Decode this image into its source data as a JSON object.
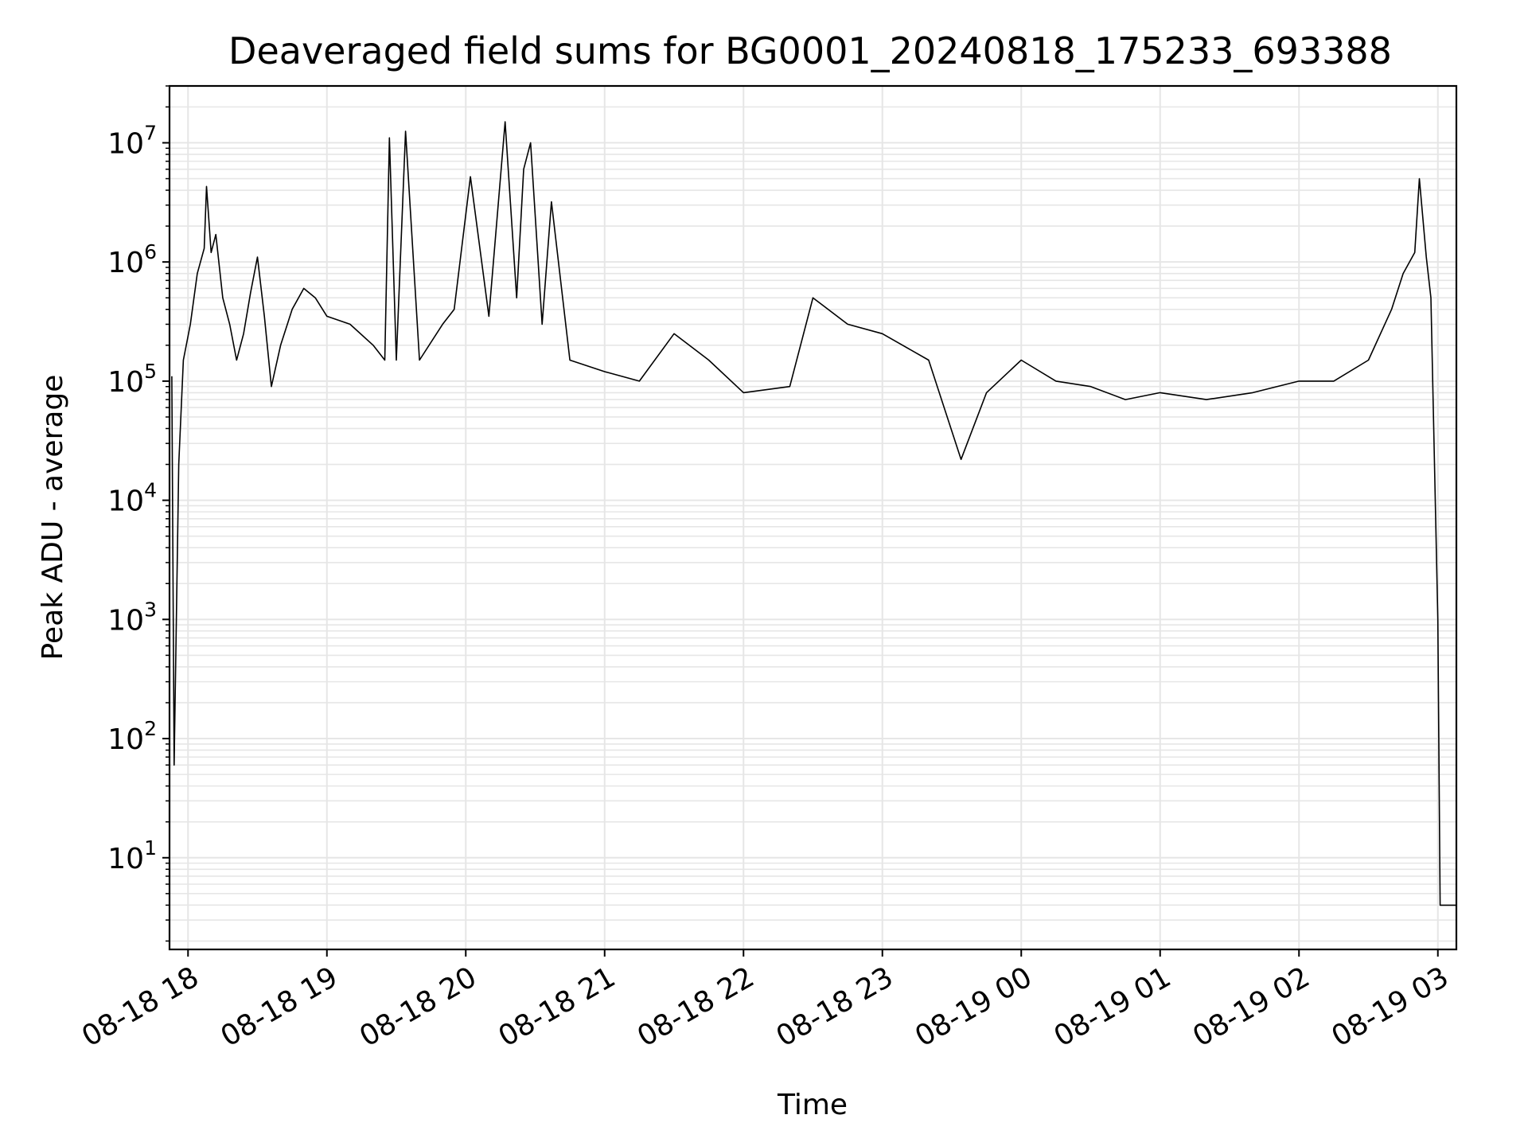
{
  "chart_data": {
    "type": "line",
    "title": "Deaveraged field sums for BG0001_20240818_175233_693388",
    "xlabel": "Time",
    "ylabel": "Peak ADU - average",
    "yscale": "log",
    "ylim": [
      1.7,
      30000000
    ],
    "xlim": [
      "08-18 17:52",
      "08-19 03:08"
    ],
    "grid": true,
    "line_color": "#000000",
    "grid_color": "#e6e6e6",
    "x_ticks": [
      "08-18 18",
      "08-18 19",
      "08-18 20",
      "08-18 21",
      "08-18 22",
      "08-18 23",
      "08-19 00",
      "08-19 01",
      "08-19 02",
      "08-19 03"
    ],
    "y_ticks": [
      {
        "base": "10",
        "exp": "1"
      },
      {
        "base": "10",
        "exp": "2"
      },
      {
        "base": "10",
        "exp": "3"
      },
      {
        "base": "10",
        "exp": "4"
      },
      {
        "base": "10",
        "exp": "5"
      },
      {
        "base": "10",
        "exp": "6"
      },
      {
        "base": "10",
        "exp": "7"
      }
    ],
    "series": [
      {
        "points": [
          [
            "08-18 17:53",
            110000
          ],
          [
            "08-18 17:54",
            60
          ],
          [
            "08-18 17:56",
            20000
          ],
          [
            "08-18 17:58",
            150000
          ],
          [
            "08-18 18:01",
            300000
          ],
          [
            "08-18 18:04",
            800000
          ],
          [
            "08-18 18:07",
            1300000
          ],
          [
            "08-18 18:08",
            4300000
          ],
          [
            "08-18 18:10",
            1200000
          ],
          [
            "08-18 18:12",
            1700000
          ],
          [
            "08-18 18:15",
            500000
          ],
          [
            "08-18 18:18",
            300000
          ],
          [
            "08-18 18:21",
            150000
          ],
          [
            "08-18 18:24",
            250000
          ],
          [
            "08-18 18:27",
            550000
          ],
          [
            "08-18 18:30",
            1100000
          ],
          [
            "08-18 18:33",
            350000
          ],
          [
            "08-18 18:36",
            90000
          ],
          [
            "08-18 18:40",
            200000
          ],
          [
            "08-18 18:45",
            400000
          ],
          [
            "08-18 18:50",
            600000
          ],
          [
            "08-18 18:55",
            500000
          ],
          [
            "08-18 19:00",
            350000
          ],
          [
            "08-18 19:10",
            300000
          ],
          [
            "08-18 19:20",
            200000
          ],
          [
            "08-18 19:25",
            150000
          ],
          [
            "08-18 19:27",
            11000000
          ],
          [
            "08-18 19:30",
            150000
          ],
          [
            "08-18 19:34",
            12500000
          ],
          [
            "08-18 19:40",
            150000
          ],
          [
            "08-18 19:50",
            300000
          ],
          [
            "08-18 19:55",
            400000
          ],
          [
            "08-18 20:02",
            5200000
          ],
          [
            "08-18 20:10",
            350000
          ],
          [
            "08-18 20:17",
            15000000
          ],
          [
            "08-18 20:22",
            500000
          ],
          [
            "08-18 20:25",
            6000000
          ],
          [
            "08-18 20:28",
            10000000
          ],
          [
            "08-18 20:33",
            300000
          ],
          [
            "08-18 20:37",
            3200000
          ],
          [
            "08-18 20:45",
            150000
          ],
          [
            "08-18 21:00",
            120000
          ],
          [
            "08-18 21:15",
            100000
          ],
          [
            "08-18 21:30",
            250000
          ],
          [
            "08-18 21:45",
            150000
          ],
          [
            "08-18 22:00",
            80000
          ],
          [
            "08-18 22:20",
            90000
          ],
          [
            "08-18 22:30",
            500000
          ],
          [
            "08-18 22:45",
            300000
          ],
          [
            "08-18 23:00",
            250000
          ],
          [
            "08-18 23:20",
            150000
          ],
          [
            "08-18 23:34",
            22000
          ],
          [
            "08-18 23:45",
            80000
          ],
          [
            "08-19 00:00",
            150000
          ],
          [
            "08-19 00:15",
            100000
          ],
          [
            "08-19 00:30",
            90000
          ],
          [
            "08-19 00:45",
            70000
          ],
          [
            "08-19 01:00",
            80000
          ],
          [
            "08-19 01:20",
            70000
          ],
          [
            "08-19 01:40",
            80000
          ],
          [
            "08-19 02:00",
            100000
          ],
          [
            "08-19 02:15",
            100000
          ],
          [
            "08-19 02:30",
            150000
          ],
          [
            "08-19 02:40",
            400000
          ],
          [
            "08-19 02:45",
            800000
          ],
          [
            "08-19 02:50",
            1200000
          ],
          [
            "08-19 02:52",
            5000000
          ],
          [
            "08-19 02:55",
            1100000
          ],
          [
            "08-19 02:57",
            500000
          ],
          [
            "08-19 03:00",
            1000
          ],
          [
            "08-19 03:01",
            4
          ],
          [
            "08-19 03:08",
            4
          ]
        ]
      }
    ]
  }
}
